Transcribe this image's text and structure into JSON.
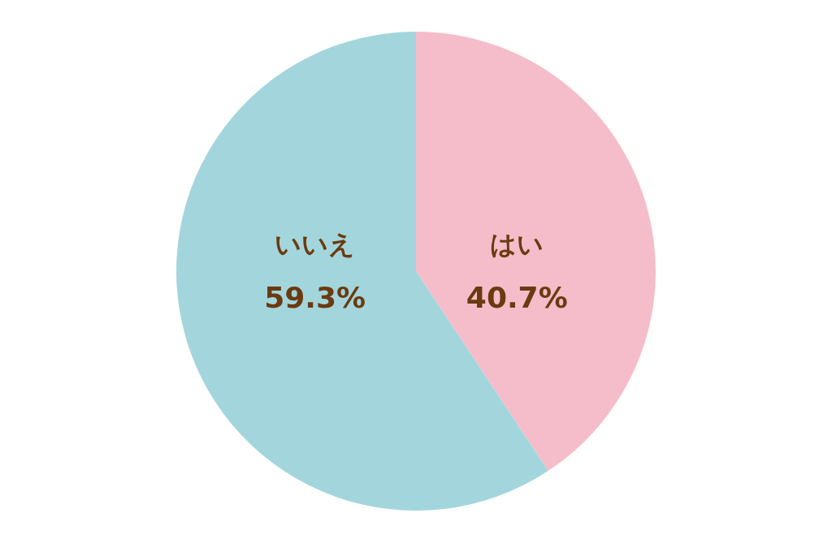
{
  "chart_data": {
    "type": "pie",
    "categories": [
      "はい",
      "いいえ"
    ],
    "values": [
      40.7,
      59.3
    ],
    "colors": [
      "#f5bdc9",
      "#a3d6dc"
    ],
    "value_labels": [
      "40.7%",
      "59.3%"
    ]
  }
}
